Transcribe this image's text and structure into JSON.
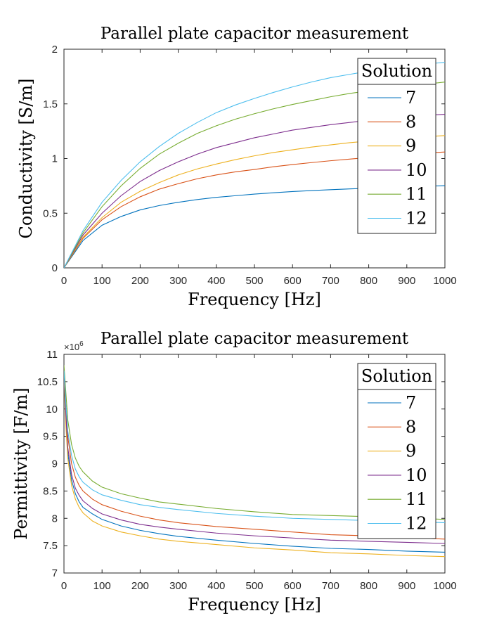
{
  "chart_data": [
    {
      "type": "line",
      "title": "Parallel plate capacitor measurement",
      "xlabel": "Frequency [Hz]",
      "ylabel": "Conductivity [S/m]",
      "xlim": [
        0,
        1000
      ],
      "ylim": [
        0,
        2
      ],
      "xticks": [
        "0",
        "100",
        "200",
        "300",
        "400",
        "500",
        "600",
        "700",
        "800",
        "900",
        "1000"
      ],
      "yticks": [
        "0",
        "0.5",
        "1",
        "1.5",
        "2"
      ],
      "grid": false,
      "legend": {
        "title": "Solution",
        "placement": "top-right"
      },
      "x": [
        0,
        50,
        100,
        150,
        200,
        250,
        300,
        350,
        400,
        450,
        500,
        550,
        600,
        650,
        700,
        750,
        800,
        850,
        900,
        950,
        1000
      ],
      "series": [
        {
          "name": "7",
          "color": "#0072BD",
          "values": [
            0,
            0.25,
            0.39,
            0.47,
            0.53,
            0.57,
            0.6,
            0.625,
            0.645,
            0.66,
            0.675,
            0.687,
            0.698,
            0.707,
            0.715,
            0.722,
            0.729,
            0.735,
            0.74,
            0.746,
            0.752
          ]
        },
        {
          "name": "8",
          "color": "#D95319",
          "values": [
            0,
            0.27,
            0.44,
            0.56,
            0.65,
            0.72,
            0.77,
            0.815,
            0.85,
            0.878,
            0.9,
            0.925,
            0.945,
            0.963,
            0.98,
            0.995,
            1.01,
            1.025,
            1.038,
            1.05,
            1.06
          ]
        },
        {
          "name": "9",
          "color": "#EDB120",
          "values": [
            0,
            0.28,
            0.46,
            0.6,
            0.7,
            0.78,
            0.85,
            0.905,
            0.95,
            0.99,
            1.025,
            1.055,
            1.08,
            1.105,
            1.125,
            1.145,
            1.16,
            1.175,
            1.19,
            1.2,
            1.21
          ]
        },
        {
          "name": "10",
          "color": "#7E2F8E",
          "values": [
            0,
            0.3,
            0.5,
            0.66,
            0.79,
            0.89,
            0.97,
            1.04,
            1.1,
            1.145,
            1.19,
            1.225,
            1.26,
            1.285,
            1.31,
            1.33,
            1.35,
            1.365,
            1.38,
            1.395,
            1.405
          ]
        },
        {
          "name": "11",
          "color": "#77AC30",
          "values": [
            0,
            0.32,
            0.56,
            0.75,
            0.91,
            1.04,
            1.14,
            1.23,
            1.3,
            1.36,
            1.41,
            1.455,
            1.495,
            1.53,
            1.565,
            1.595,
            1.62,
            1.645,
            1.665,
            1.68,
            1.7
          ]
        },
        {
          "name": "12",
          "color": "#4DBEEE",
          "values": [
            0,
            0.34,
            0.6,
            0.8,
            0.97,
            1.11,
            1.23,
            1.33,
            1.42,
            1.49,
            1.55,
            1.605,
            1.655,
            1.7,
            1.74,
            1.77,
            1.8,
            1.825,
            1.85,
            1.865,
            1.88
          ]
        }
      ]
    },
    {
      "type": "line",
      "title": "Parallel plate capacitor measurement",
      "xlabel": "Frequency [Hz]",
      "ylabel": "Permittivity [F/m]",
      "exponent_label": "×10",
      "exponent_power": "6",
      "xlim": [
        0,
        1000
      ],
      "ylim": [
        7,
        11
      ],
      "xticks": [
        "0",
        "100",
        "200",
        "300",
        "400",
        "500",
        "600",
        "700",
        "800",
        "900",
        "1000"
      ],
      "yticks": [
        "7",
        "7.5",
        "8",
        "8.5",
        "9",
        "9.5",
        "10",
        "10.5",
        "11"
      ],
      "grid": false,
      "legend": {
        "title": "Solution",
        "placement": "top-right"
      },
      "x": [
        0,
        5,
        10,
        20,
        30,
        40,
        50,
        75,
        100,
        150,
        200,
        250,
        300,
        400,
        500,
        600,
        700,
        800,
        900,
        1000
      ],
      "series": [
        {
          "name": "7",
          "color": "#0072BD",
          "values": [
            10.7,
            9.8,
            9.2,
            8.7,
            8.45,
            8.3,
            8.2,
            8.08,
            7.98,
            7.86,
            7.78,
            7.72,
            7.67,
            7.6,
            7.54,
            7.49,
            7.45,
            7.43,
            7.4,
            7.38
          ]
        },
        {
          "name": "8",
          "color": "#D95319",
          "values": [
            10.75,
            10.0,
            9.5,
            9.0,
            8.75,
            8.6,
            8.5,
            8.35,
            8.25,
            8.13,
            8.04,
            7.97,
            7.92,
            7.85,
            7.8,
            7.75,
            7.7,
            7.68,
            7.65,
            7.62
          ]
        },
        {
          "name": "9",
          "color": "#EDB120",
          "values": [
            10.6,
            9.7,
            9.1,
            8.6,
            8.35,
            8.2,
            8.1,
            7.95,
            7.86,
            7.75,
            7.68,
            7.62,
            7.58,
            7.52,
            7.46,
            7.42,
            7.37,
            7.35,
            7.32,
            7.3
          ]
        },
        {
          "name": "10",
          "color": "#7E2F8E",
          "values": [
            10.7,
            9.9,
            9.3,
            8.8,
            8.55,
            8.42,
            8.32,
            8.18,
            8.08,
            7.97,
            7.89,
            7.84,
            7.8,
            7.73,
            7.68,
            7.64,
            7.6,
            7.58,
            7.56,
            7.54
          ]
        },
        {
          "name": "11",
          "color": "#77AC30",
          "values": [
            10.8,
            10.3,
            9.8,
            9.35,
            9.1,
            8.95,
            8.85,
            8.68,
            8.57,
            8.45,
            8.37,
            8.3,
            8.26,
            8.18,
            8.12,
            8.07,
            8.05,
            8.03,
            8.01,
            7.98
          ]
        },
        {
          "name": "12",
          "color": "#4DBEEE",
          "values": [
            10.7,
            10.1,
            9.6,
            9.15,
            8.9,
            8.76,
            8.66,
            8.52,
            8.43,
            8.33,
            8.25,
            8.2,
            8.16,
            8.09,
            8.04,
            8.0,
            7.98,
            7.96,
            7.94,
            7.92
          ]
        }
      ]
    }
  ]
}
